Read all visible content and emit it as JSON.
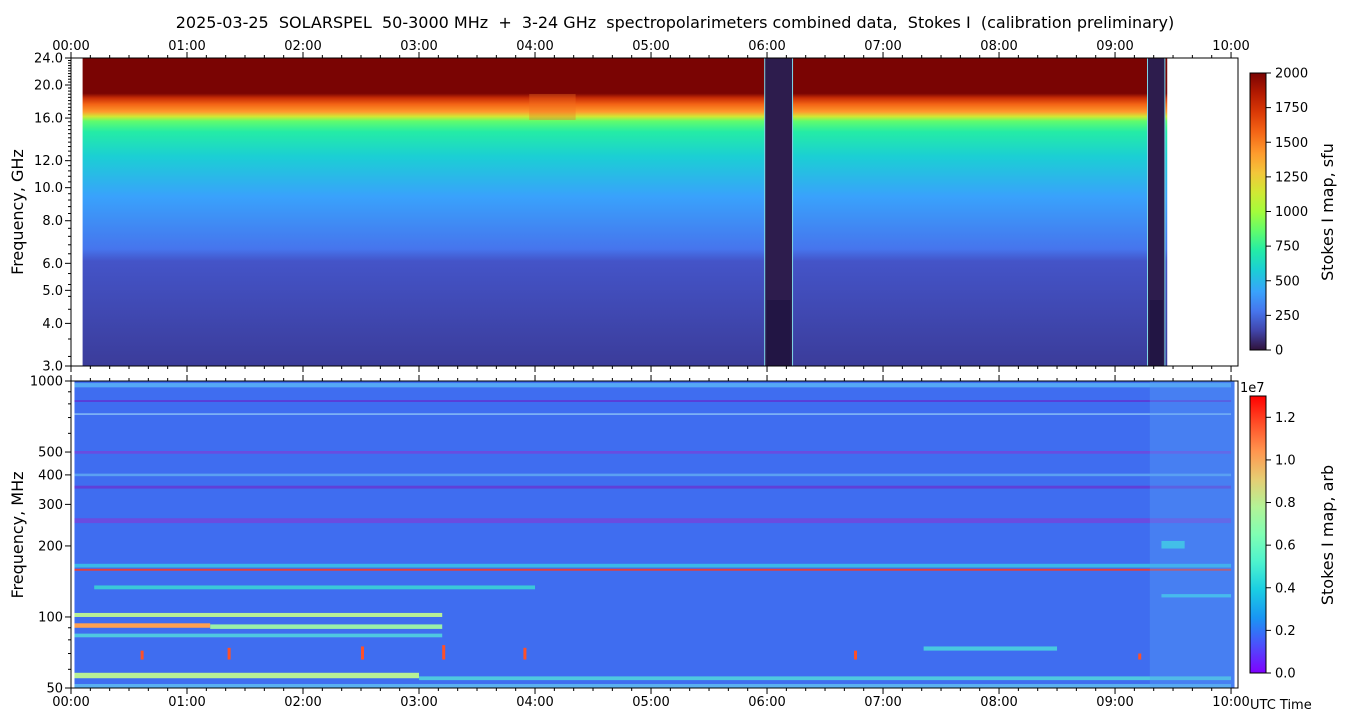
{
  "title": "2025-03-25  SOLARSPEL  50-3000 MHz  +  3-24 GHz  spectropolarimeters combined data,  Stokes I  (calibration preliminary)",
  "time_label": "UTC Time",
  "chart_data": [
    {
      "type": "heatmap",
      "name": "upper",
      "ylabel": "Frequency, GHz",
      "x_ticks": [
        "00:00",
        "01:00",
        "02:00",
        "03:00",
        "04:00",
        "05:00",
        "06:00",
        "07:00",
        "08:00",
        "09:00",
        "10:00"
      ],
      "xlim_hours": [
        0,
        10.06
      ],
      "y_scale": "log",
      "ylim": [
        3.0,
        24.0
      ],
      "y_ticks": [
        3.0,
        4.0,
        5.0,
        6.0,
        8.0,
        10.0,
        12.0,
        16.0,
        20.0,
        24.0
      ],
      "y_tick_labels": [
        "3.0",
        "4.0",
        "5.0",
        "6.0",
        "8.0",
        "10.0",
        "12.0",
        "16.0",
        "20.0",
        "24.0"
      ],
      "data_start_hour": 0.1,
      "data_end_hour": 9.45,
      "gaps_hours": [
        [
          5.98,
          6.22
        ],
        [
          9.28,
          9.43
        ]
      ],
      "colorbar": {
        "label": "Stokes I map, sfu",
        "min": 0,
        "max": 2000,
        "ticks": [
          0,
          250,
          500,
          750,
          1000,
          1250,
          1500,
          1750,
          2000
        ],
        "tick_labels": [
          "0",
          "250",
          "500",
          "750",
          "1000",
          "1250",
          "1500",
          "1750",
          "2000"
        ],
        "colormap": "turbo"
      }
    },
    {
      "type": "heatmap",
      "name": "lower",
      "ylabel": "Frequency, MHz",
      "x_ticks": [
        "00:00",
        "01:00",
        "02:00",
        "03:00",
        "04:00",
        "05:00",
        "06:00",
        "07:00",
        "08:00",
        "09:00",
        "10:00"
      ],
      "xlim_hours": [
        0,
        10.06
      ],
      "y_scale": "log",
      "ylim": [
        50,
        1000
      ],
      "y_ticks": [
        50,
        100,
        200,
        300,
        400,
        500,
        1000
      ],
      "y_tick_labels": [
        "50",
        "100",
        "200",
        "300",
        "400",
        "500",
        "1000"
      ],
      "data_start_hour": 0.03,
      "data_end_hour": 10.03,
      "colorbar": {
        "label": "Stokes I map, arb",
        "multiplier": "1e7",
        "min": 0.0,
        "max": 1.3,
        "ticks": [
          0.0,
          0.2,
          0.4,
          0.6,
          0.8,
          1.0,
          1.2
        ],
        "tick_labels": [
          "0.0",
          "0.2",
          "0.4",
          "0.6",
          "0.8",
          "1.0",
          "1.2"
        ],
        "colormap": "rainbow"
      }
    }
  ],
  "colors": {
    "turbo_stops": [
      "#30123b",
      "#4145ab",
      "#4675ed",
      "#39a2fc",
      "#1bcfd4",
      "#24eca6",
      "#61fc6c",
      "#a4fc3b",
      "#d1e834",
      "#f3c63a",
      "#fe9b2d",
      "#f36315",
      "#d93806",
      "#b11901",
      "#7a0403"
    ],
    "rainbow_stops": [
      "#8000ff",
      "#4c4ffc",
      "#1996f3",
      "#1acde3",
      "#4df3ce",
      "#80feb3",
      "#b3f396",
      "#e6cd73",
      "#ff964f",
      "#ff4f28",
      "#ff0000"
    ]
  }
}
